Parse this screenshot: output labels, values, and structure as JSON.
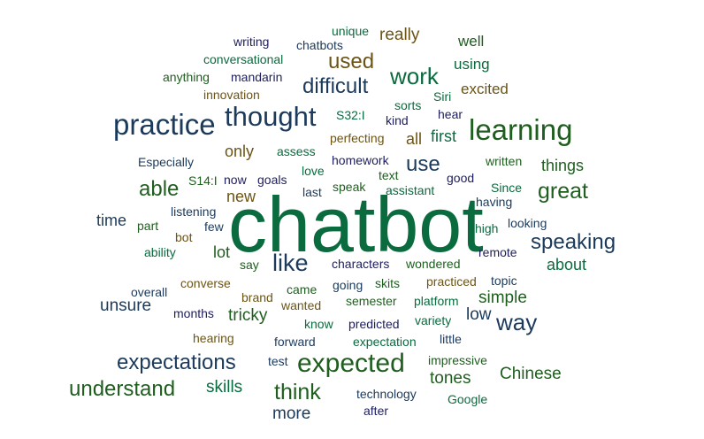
{
  "colors": {
    "dark_blue": "#1b3a5c",
    "dark_green": "#1f5e1f",
    "teal_green": "#0a6b3e",
    "olive": "#6b5414",
    "navy": "#1e1e5e",
    "background": "#ffffff"
  },
  "words": [
    {
      "text": "chatbot",
      "color": "#0a6b3e"
    },
    {
      "text": "practice",
      "color": "#1b3a5c"
    },
    {
      "text": "thought",
      "color": "#1b3a5c"
    },
    {
      "text": "learning",
      "color": "#1f5e1f"
    },
    {
      "text": "expected",
      "color": "#1f5e1f"
    },
    {
      "text": "expectations",
      "color": "#1b3a5c"
    },
    {
      "text": "understand",
      "color": "#1f5e1f"
    },
    {
      "text": "speaking",
      "color": "#1b3a5c"
    },
    {
      "text": "difficult",
      "color": "#1b3a5c"
    },
    {
      "text": "great",
      "color": "#1f5e1f"
    },
    {
      "text": "like",
      "color": "#1b3a5c"
    },
    {
      "text": "able",
      "color": "#1f5e1f"
    },
    {
      "text": "work",
      "color": "#0a6b3e"
    },
    {
      "text": "use",
      "color": "#1b3a5c"
    },
    {
      "text": "used",
      "color": "#6b5414"
    },
    {
      "text": "way",
      "color": "#1b3a5c"
    },
    {
      "text": "think",
      "color": "#1f5e1f"
    },
    {
      "text": "really",
      "color": "#6b5414"
    },
    {
      "text": "well",
      "color": "#1f5e1f"
    },
    {
      "text": "using",
      "color": "#0a6b3e"
    },
    {
      "text": "excited",
      "color": "#6b5414"
    },
    {
      "text": "first",
      "color": "#0a6b3e"
    },
    {
      "text": "only",
      "color": "#6b5414"
    },
    {
      "text": "all",
      "color": "#6b5414"
    },
    {
      "text": "things",
      "color": "#1f5e1f"
    },
    {
      "text": "time",
      "color": "#1b3a5c"
    },
    {
      "text": "new",
      "color": "#6b5414"
    },
    {
      "text": "lot",
      "color": "#1f5e1f"
    },
    {
      "text": "about",
      "color": "#0a6b3e"
    },
    {
      "text": "simple",
      "color": "#1f5e1f"
    },
    {
      "text": "unsure",
      "color": "#1b3a5c"
    },
    {
      "text": "tricky",
      "color": "#1f5e1f"
    },
    {
      "text": "low",
      "color": "#1b3a5c"
    },
    {
      "text": "tones",
      "color": "#1f5e1f"
    },
    {
      "text": "Chinese",
      "color": "#1f5e1f"
    },
    {
      "text": "skills",
      "color": "#0a6b3e"
    },
    {
      "text": "more",
      "color": "#1b3a5c"
    },
    {
      "text": "writing",
      "color": "#1e1e5e"
    },
    {
      "text": "chatbots",
      "color": "#1b3a5c"
    },
    {
      "text": "unique",
      "color": "#0a6b3e"
    },
    {
      "text": "conversational",
      "color": "#0a6b3e"
    },
    {
      "text": "anything",
      "color": "#1f5e1f"
    },
    {
      "text": "mandarin",
      "color": "#1e1e5e"
    },
    {
      "text": "innovation",
      "color": "#6b5414"
    },
    {
      "text": "Siri",
      "color": "#0a6b3e"
    },
    {
      "text": "sorts",
      "color": "#0a6b3e"
    },
    {
      "text": "hear",
      "color": "#1e1e5e"
    },
    {
      "text": "kind",
      "color": "#1e1e5e"
    },
    {
      "text": "S32:I",
      "color": "#0a6b3e"
    },
    {
      "text": "perfecting",
      "color": "#6b5414"
    },
    {
      "text": "assess",
      "color": "#0a6b3e"
    },
    {
      "text": "Especially",
      "color": "#1b3a5c"
    },
    {
      "text": "love",
      "color": "#0a6b3e"
    },
    {
      "text": "homework",
      "color": "#1e1e5e"
    },
    {
      "text": "written",
      "color": "#1f5e1f"
    },
    {
      "text": "good",
      "color": "#1e1e5e"
    },
    {
      "text": "text",
      "color": "#1f5e1f"
    },
    {
      "text": "S14:I",
      "color": "#1f5e1f"
    },
    {
      "text": "now",
      "color": "#1e1e5e"
    },
    {
      "text": "goals",
      "color": "#1e1e5e"
    },
    {
      "text": "last",
      "color": "#1b3a5c"
    },
    {
      "text": "speak",
      "color": "#1f5e1f"
    },
    {
      "text": "assistant",
      "color": "#0a6b3e"
    },
    {
      "text": "Since",
      "color": "#0a6b3e"
    },
    {
      "text": "having",
      "color": "#1b3a5c"
    },
    {
      "text": "listening",
      "color": "#1b3a5c"
    },
    {
      "text": "part",
      "color": "#1f5e1f"
    },
    {
      "text": "few",
      "color": "#1b3a5c"
    },
    {
      "text": "bot",
      "color": "#6b5414"
    },
    {
      "text": "high",
      "color": "#0a6b3e"
    },
    {
      "text": "looking",
      "color": "#1b3a5c"
    },
    {
      "text": "ability",
      "color": "#0a6b3e"
    },
    {
      "text": "remote",
      "color": "#1e1e5e"
    },
    {
      "text": "say",
      "color": "#1f5e1f"
    },
    {
      "text": "characters",
      "color": "#1e1e5e"
    },
    {
      "text": "wondered",
      "color": "#1f5e1f"
    },
    {
      "text": "overall",
      "color": "#1b3a5c"
    },
    {
      "text": "converse",
      "color": "#6b5414"
    },
    {
      "text": "came",
      "color": "#1f5e1f"
    },
    {
      "text": "going",
      "color": "#1b3a5c"
    },
    {
      "text": "skits",
      "color": "#1f5e1f"
    },
    {
      "text": "practiced",
      "color": "#6b5414"
    },
    {
      "text": "topic",
      "color": "#1b3a5c"
    },
    {
      "text": "brand",
      "color": "#6b5414"
    },
    {
      "text": "wanted",
      "color": "#6b5414"
    },
    {
      "text": "semester",
      "color": "#1f5e1f"
    },
    {
      "text": "platform",
      "color": "#0a6b3e"
    },
    {
      "text": "months",
      "color": "#1e1e5e"
    },
    {
      "text": "know",
      "color": "#0a6b3e"
    },
    {
      "text": "predicted",
      "color": "#1e1e5e"
    },
    {
      "text": "variety",
      "color": "#0a6b3e"
    },
    {
      "text": "hearing",
      "color": "#6b5414"
    },
    {
      "text": "forward",
      "color": "#1b3a5c"
    },
    {
      "text": "expectation",
      "color": "#0a6b3e"
    },
    {
      "text": "little",
      "color": "#1b3a5c"
    },
    {
      "text": "test",
      "color": "#1b3a5c"
    },
    {
      "text": "impressive",
      "color": "#1f5e1f"
    },
    {
      "text": "technology",
      "color": "#1b3a5c"
    },
    {
      "text": "after",
      "color": "#1e1e5e"
    },
    {
      "text": "Google",
      "color": "#0a6b3e"
    }
  ]
}
